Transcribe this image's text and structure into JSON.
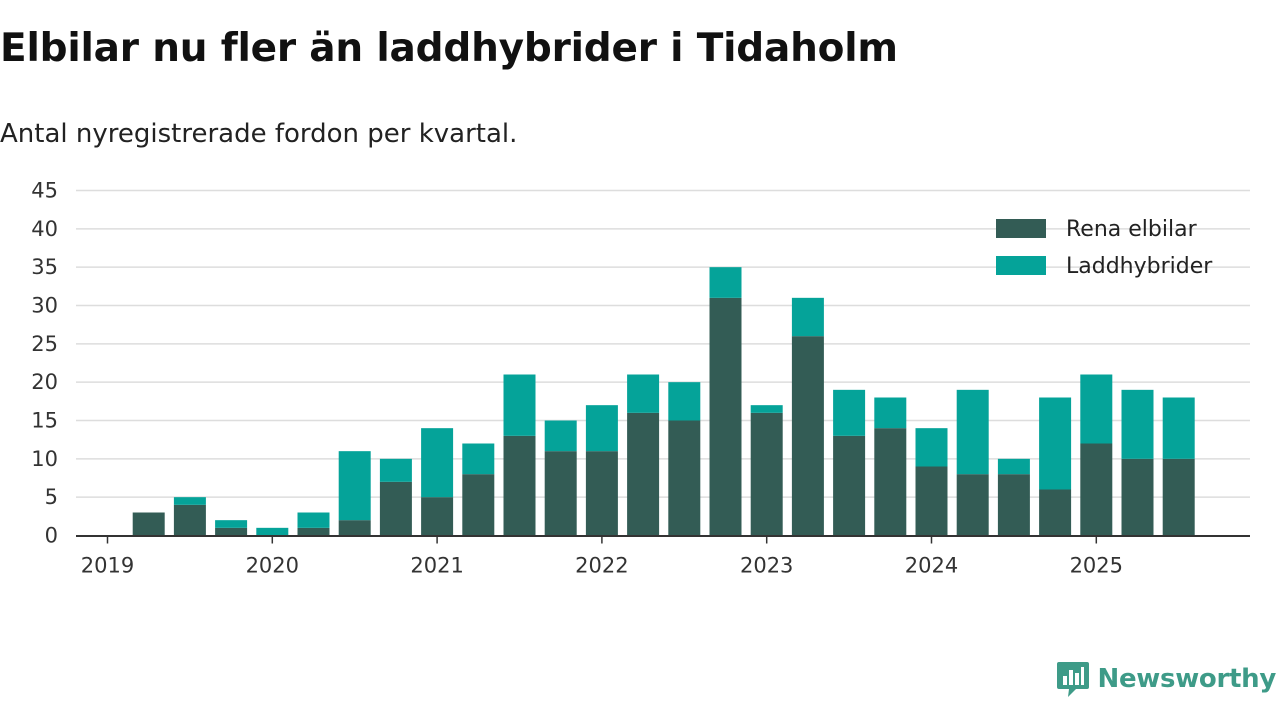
{
  "title": "Elbilar nu fler än laddhybrider i Tidaholm",
  "subtitle": "Antal nyregistrerade fordon per kvartal.",
  "brand": "Newsworthy",
  "colors": {
    "elbilar": "#335c55",
    "laddhybrider": "#05a399",
    "grid": "#dddddd",
    "axis": "#333333",
    "brand": "#3e9b88"
  },
  "chart_data": {
    "type": "bar",
    "stacked": true,
    "title": "Elbilar nu fler än laddhybrider i Tidaholm",
    "subtitle": "Antal nyregistrerade fordon per kvartal.",
    "xlabel": "",
    "ylabel": "",
    "ylim": [
      0,
      45
    ],
    "yticks": [
      0,
      5,
      10,
      15,
      20,
      25,
      30,
      35,
      40,
      45
    ],
    "xtick_labels": [
      "2019",
      "2020",
      "2021",
      "2022",
      "2023",
      "2024",
      "2025"
    ],
    "grid": true,
    "legend_position": "top-right",
    "categories": [
      "2019 Q1",
      "2019 Q2",
      "2019 Q3",
      "2019 Q4",
      "2020 Q1",
      "2020 Q2",
      "2020 Q3",
      "2020 Q4",
      "2021 Q1",
      "2021 Q2",
      "2021 Q3",
      "2021 Q4",
      "2022 Q1",
      "2022 Q2",
      "2022 Q3",
      "2022 Q4",
      "2023 Q1",
      "2023 Q2",
      "2023 Q3",
      "2023 Q4",
      "2024 Q1",
      "2024 Q2",
      "2024 Q3",
      "2024 Q4",
      "2025 Q1",
      "2025 Q2",
      "2025 Q3"
    ],
    "series": [
      {
        "name": "Rena elbilar",
        "values": [
          0,
          3,
          4,
          1,
          0,
          1,
          2,
          7,
          5,
          8,
          13,
          11,
          11,
          16,
          15,
          31,
          16,
          26,
          13,
          14,
          9,
          8,
          8,
          6,
          12,
          10,
          10
        ]
      },
      {
        "name": "Laddhybrider",
        "values": [
          0,
          0,
          1,
          1,
          1,
          2,
          9,
          3,
          9,
          4,
          8,
          4,
          6,
          5,
          5,
          4,
          1,
          5,
          6,
          4,
          5,
          11,
          2,
          12,
          9,
          9,
          8
        ]
      }
    ]
  }
}
